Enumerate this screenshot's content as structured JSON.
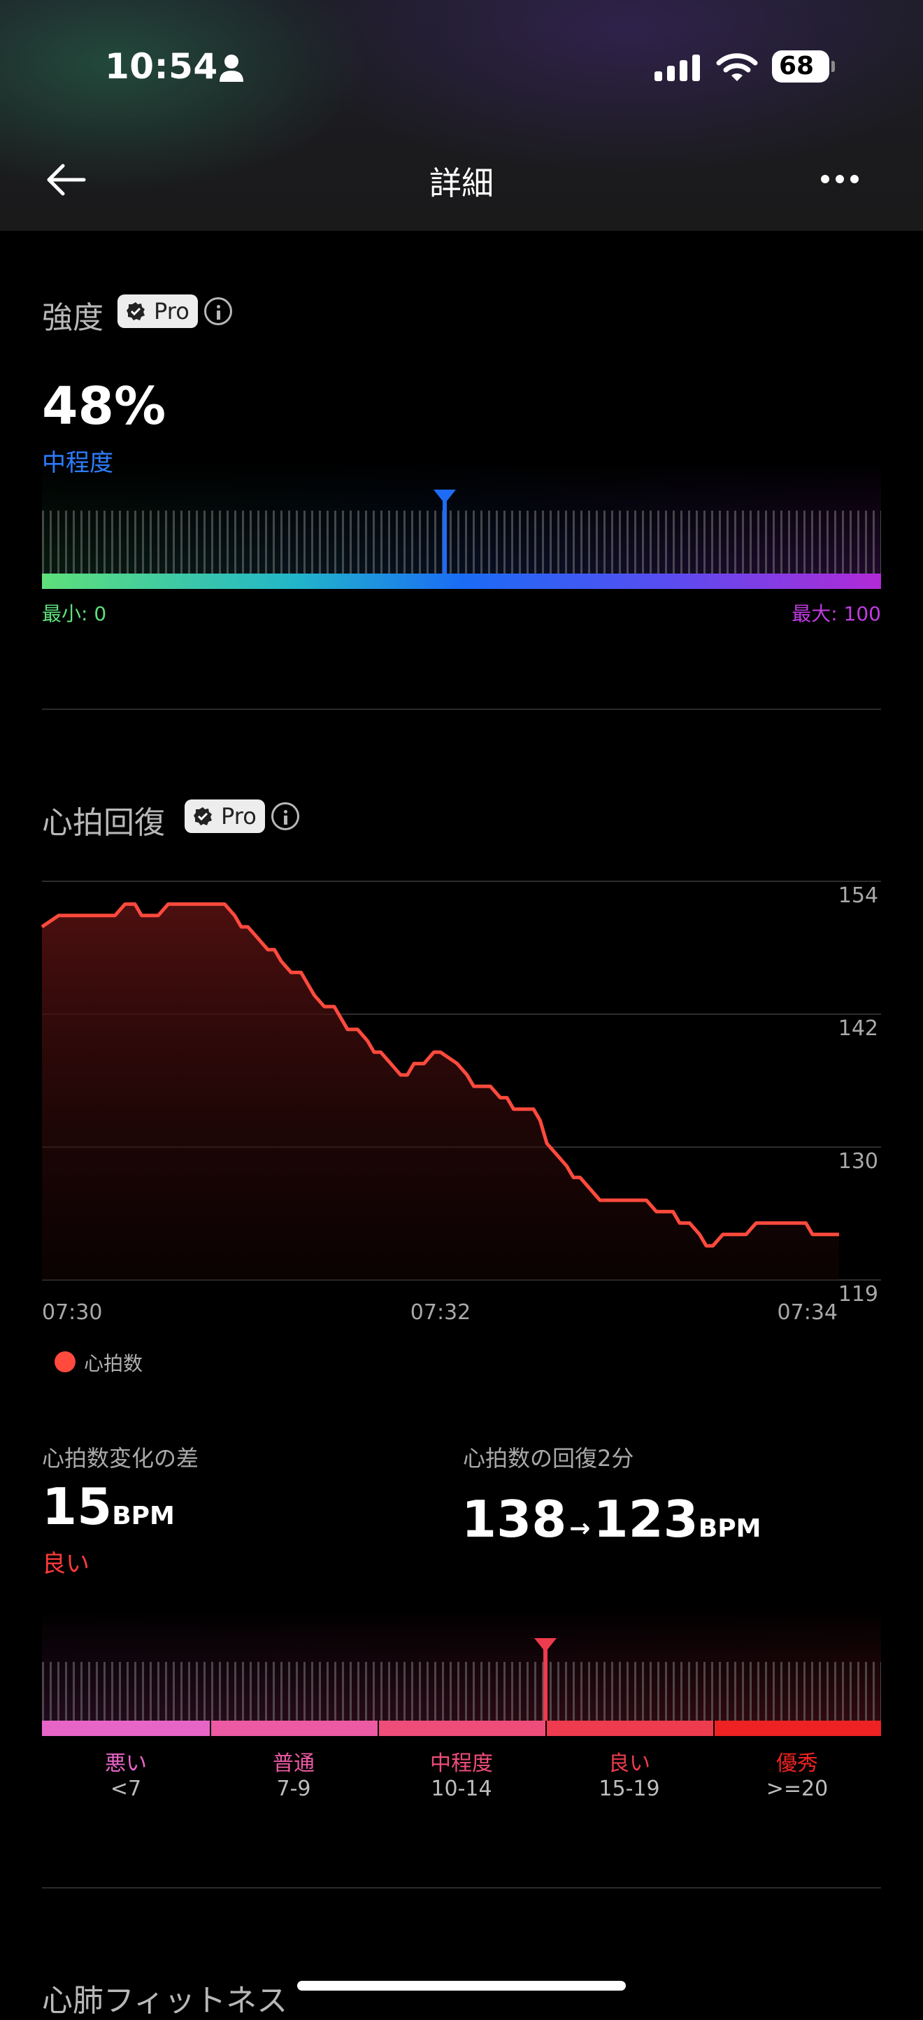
{
  "status_bar": {
    "time": "10:54",
    "battery": "68"
  },
  "nav": {
    "title": "詳細"
  },
  "intensity": {
    "title": "強度",
    "badge": "Pro",
    "value": "48%",
    "level": "中程度",
    "min_label": "最小: 0",
    "max_label": "最大: 100",
    "fraction": 0.48
  },
  "recovery": {
    "title": "心拍回復",
    "badge": "Pro",
    "legend": "心拍数",
    "y_ticks": [
      "154",
      "142",
      "130",
      "119"
    ],
    "x_ticks": [
      "07:30",
      "07:32",
      "07:34"
    ],
    "diff_label": "心拍数変化の差",
    "diff_value": "15",
    "diff_unit": "BPM",
    "diff_rating": "良い",
    "two_min_label": "心拍数の回復2分",
    "start_value": "138",
    "arrow": "→",
    "end_value": "123",
    "end_unit": "BPM",
    "marker_fraction": 0.6,
    "segments": [
      {
        "label": "悪い",
        "range": "<7",
        "color": "#e865c8"
      },
      {
        "label": "普通",
        "range": "7-9",
        "color": "#ec5aa3"
      },
      {
        "label": "中程度",
        "range": "10-14",
        "color": "#ee4d79"
      },
      {
        "label": "良い",
        "range": "15-19",
        "color": "#ee3b4d"
      },
      {
        "label": "優秀",
        "range": ">=20",
        "color": "#ee2222"
      }
    ]
  },
  "chart_data": {
    "type": "line",
    "series": [
      {
        "name": "心拍数",
        "x": [
          0,
          5,
          10,
          15,
          18,
          20,
          22,
          25,
          28,
          30,
          32,
          35,
          38,
          40,
          42,
          45,
          48,
          50,
          52,
          55,
          58,
          60,
          62,
          65,
          68,
          70,
          72,
          75,
          78,
          80,
          82,
          85,
          88,
          90,
          92,
          95,
          98,
          100,
          102,
          105,
          108,
          110,
          112,
          115,
          118,
          120,
          125,
          128,
          130,
          135,
          138,
          140,
          142,
          145,
          148,
          150,
          152,
          155,
          158,
          160,
          162,
          165,
          168,
          170,
          172,
          175,
          178,
          180,
          182,
          185,
          188,
          190,
          192,
          195,
          198,
          200,
          202,
          205,
          208,
          210,
          212,
          215,
          218,
          220,
          222,
          225,
          228,
          230,
          232,
          235,
          238,
          240
        ],
        "values": [
          150,
          151,
          151,
          151,
          151,
          151,
          151,
          152,
          152,
          151,
          151,
          151,
          152,
          152,
          152,
          152,
          152,
          152,
          152,
          152,
          151,
          150,
          150,
          149,
          148,
          148,
          147,
          146,
          146,
          145,
          144,
          143,
          143,
          142,
          141,
          141,
          140,
          139,
          139,
          138,
          137,
          137,
          138,
          138,
          139,
          139,
          138,
          137,
          136,
          136,
          135,
          135,
          134,
          134,
          134,
          133,
          131,
          130,
          129,
          128,
          128,
          127,
          126,
          126,
          126,
          126,
          126,
          126,
          126,
          125,
          125,
          125,
          124,
          124,
          123,
          122,
          122,
          123,
          123,
          123,
          123,
          124,
          124,
          124,
          124,
          124,
          124,
          124,
          123,
          123,
          123,
          123
        ]
      }
    ],
    "x_ticks": [
      "07:30",
      "07:32",
      "07:34"
    ],
    "y_ticks": [
      154,
      142,
      130,
      119
    ],
    "ylim": [
      119,
      154
    ],
    "grid": true,
    "legend": "bottom-left"
  }
}
